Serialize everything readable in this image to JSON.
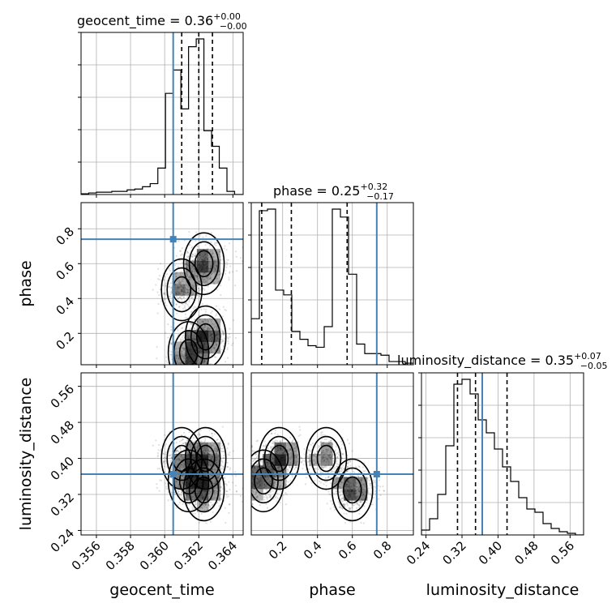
{
  "chart_data": {
    "type": "corner",
    "parameters": [
      "geocent_time",
      "phase",
      "luminosity_distance"
    ],
    "truths": {
      "geocent_time": 0.3605,
      "phase": 0.74,
      "luminosity_distance": 0.365
    },
    "titles": {
      "geocent_time": {
        "prefix": "geocent_time = 0.36",
        "plus": "+0.00",
        "minus": "−0.00"
      },
      "phase": {
        "prefix": "phase = 0.25",
        "plus": "+0.32",
        "minus": "−0.17"
      },
      "luminosity_distance": {
        "prefix": "luminosity_distance = 0.35",
        "plus": "+0.07",
        "minus": "−0.05"
      }
    },
    "axis_labels": {
      "geocent_time": "geocent_time",
      "phase": "phase",
      "luminosity_distance": "luminosity_distance"
    },
    "ranges": {
      "geocent_time": [
        0.3551,
        0.3646
      ],
      "phase": [
        0.02,
        0.95
      ],
      "luminosity_distance": [
        0.23,
        0.59
      ]
    },
    "ticks": {
      "geocent_time": [
        0.356,
        0.358,
        0.36,
        0.362,
        0.364
      ],
      "phase": [
        0.2,
        0.4,
        0.6,
        0.8
      ],
      "luminosity_distance": [
        0.24,
        0.32,
        0.4,
        0.48,
        0.56
      ]
    },
    "tick_labels": {
      "geocent_time": [
        "0.356",
        "0.358",
        "0.360",
        "0.362",
        "0.364"
      ],
      "phase": [
        "0.2",
        "0.4",
        "0.6",
        "0.8"
      ],
      "luminosity_distance": [
        "0.24",
        "0.32",
        "0.40",
        "0.48",
        "0.56"
      ]
    },
    "quantiles": {
      "geocent_time": [
        0.361,
        0.362,
        0.3628
      ],
      "phase": [
        0.08,
        0.25,
        0.57
      ],
      "luminosity_distance": [
        0.31,
        0.35,
        0.42
      ]
    },
    "histograms": {
      "geocent_time": {
        "edges": [
          0.3551,
          0.35555,
          0.356,
          0.35645,
          0.3569,
          0.35735,
          0.3578,
          0.35825,
          0.3587,
          0.35915,
          0.3596,
          0.36005,
          0.3605,
          0.36095,
          0.3614,
          0.36185,
          0.3623,
          0.36275,
          0.3632,
          0.36365,
          0.3641,
          0.3646
        ],
        "counts": [
          0.005,
          0.01,
          0.015,
          0.015,
          0.02,
          0.02,
          0.03,
          0.035,
          0.05,
          0.07,
          0.17,
          0.65,
          0.8,
          0.55,
          0.95,
          1.0,
          0.41,
          0.31,
          0.17,
          0.02,
          0.0
        ]
      },
      "phase": {
        "edges": [
          0.02,
          0.0665,
          0.113,
          0.1595,
          0.206,
          0.2525,
          0.299,
          0.3455,
          0.392,
          0.4385,
          0.485,
          0.5315,
          0.578,
          0.6245,
          0.671,
          0.7175,
          0.764,
          0.8105,
          0.857,
          0.9035,
          0.95
        ],
        "counts": [
          0.29,
          0.97,
          0.98,
          0.47,
          0.44,
          0.21,
          0.16,
          0.12,
          0.11,
          0.24,
          0.98,
          0.93,
          0.57,
          0.13,
          0.07,
          0.07,
          0.06,
          0.02,
          0.02,
          0.01
        ]
      },
      "luminosity_distance": {
        "edges": [
          0.23,
          0.248,
          0.266,
          0.284,
          0.302,
          0.32,
          0.338,
          0.356,
          0.374,
          0.392,
          0.41,
          0.428,
          0.446,
          0.464,
          0.482,
          0.5,
          0.518,
          0.536,
          0.554,
          0.572,
          0.59
        ],
        "counts": [
          0.03,
          0.1,
          0.25,
          0.55,
          0.93,
          0.96,
          0.87,
          0.71,
          0.63,
          0.53,
          0.42,
          0.33,
          0.23,
          0.16,
          0.14,
          0.07,
          0.04,
          0.02,
          0.01,
          0.0
        ]
      }
    },
    "posterior_modes": [
      {
        "geocent_time": 0.3624,
        "phase": 0.18,
        "luminosity_distance": 0.4,
        "weight": 0.3
      },
      {
        "geocent_time": 0.3623,
        "phase": 0.6,
        "luminosity_distance": 0.33,
        "weight": 0.3
      },
      {
        "geocent_time": 0.3614,
        "phase": 0.09,
        "luminosity_distance": 0.35,
        "weight": 0.2
      },
      {
        "geocent_time": 0.361,
        "phase": 0.45,
        "luminosity_distance": 0.4,
        "weight": 0.2
      }
    ],
    "contour_levels": [
      "inner",
      "middle",
      "outer"
    ],
    "grid": true
  }
}
